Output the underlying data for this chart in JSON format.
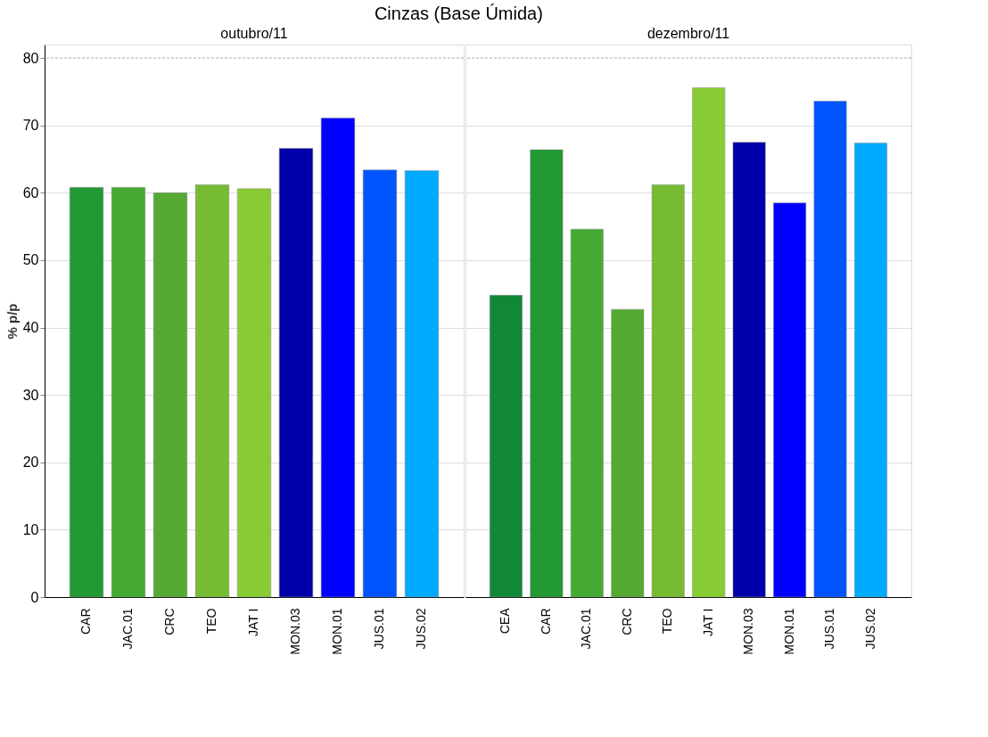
{
  "chart_data": [
    {
      "type": "bar",
      "title": "Cinzas (Base Úmida)",
      "subtitle": "outubro/11",
      "ylabel": "% p/p",
      "categories": [
        "CAR",
        "JAC.01",
        "CRC",
        "TEO",
        "JAT I",
        "MON.03",
        "MON.01",
        "JUS.01",
        "JUS.02"
      ],
      "values": [
        60.8,
        60.8,
        60.0,
        61.2,
        60.6,
        66.6,
        71.1,
        63.4,
        63.3
      ],
      "colors": [
        "#229933",
        "#44aa33",
        "#55aa33",
        "#77bb33",
        "#88cc33",
        "#0000aa",
        "#0000ff",
        "#0055ff",
        "#00aaff"
      ],
      "ylim": [
        0,
        82
      ],
      "yticks": [
        0,
        10,
        20,
        30,
        40,
        50,
        60,
        70,
        80
      ],
      "grid": "y",
      "ref_lines": [
        {
          "axis": "y",
          "value": 80,
          "color": "#aaaaaa",
          "line_style": "dashed"
        }
      ]
    },
    {
      "type": "bar",
      "subtitle": "dezembro/11",
      "categories": [
        "CEA",
        "CAR",
        "JAC.01",
        "CRC",
        "TEO",
        "JAT I",
        "MON.03",
        "MON.01",
        "JUS.01",
        "JUS.02"
      ],
      "values": [
        44.8,
        66.4,
        54.6,
        42.7,
        61.2,
        75.6,
        67.5,
        58.5,
        73.6,
        67.4
      ],
      "colors": [
        "#118836",
        "#229933",
        "#44aa33",
        "#55aa33",
        "#77bb33",
        "#88cc33",
        "#0000aa",
        "#0000ff",
        "#0055ff",
        "#00aaff"
      ],
      "ylim": [
        0,
        82
      ],
      "yticks": [
        0,
        10,
        20,
        30,
        40,
        50,
        60,
        70,
        80
      ],
      "grid": "y",
      "tick_labels": "x",
      "ref_lines": [
        {
          "axis": "y",
          "value": 80,
          "color": "#aaaaaa",
          "line_style": "dashed"
        }
      ]
    }
  ]
}
